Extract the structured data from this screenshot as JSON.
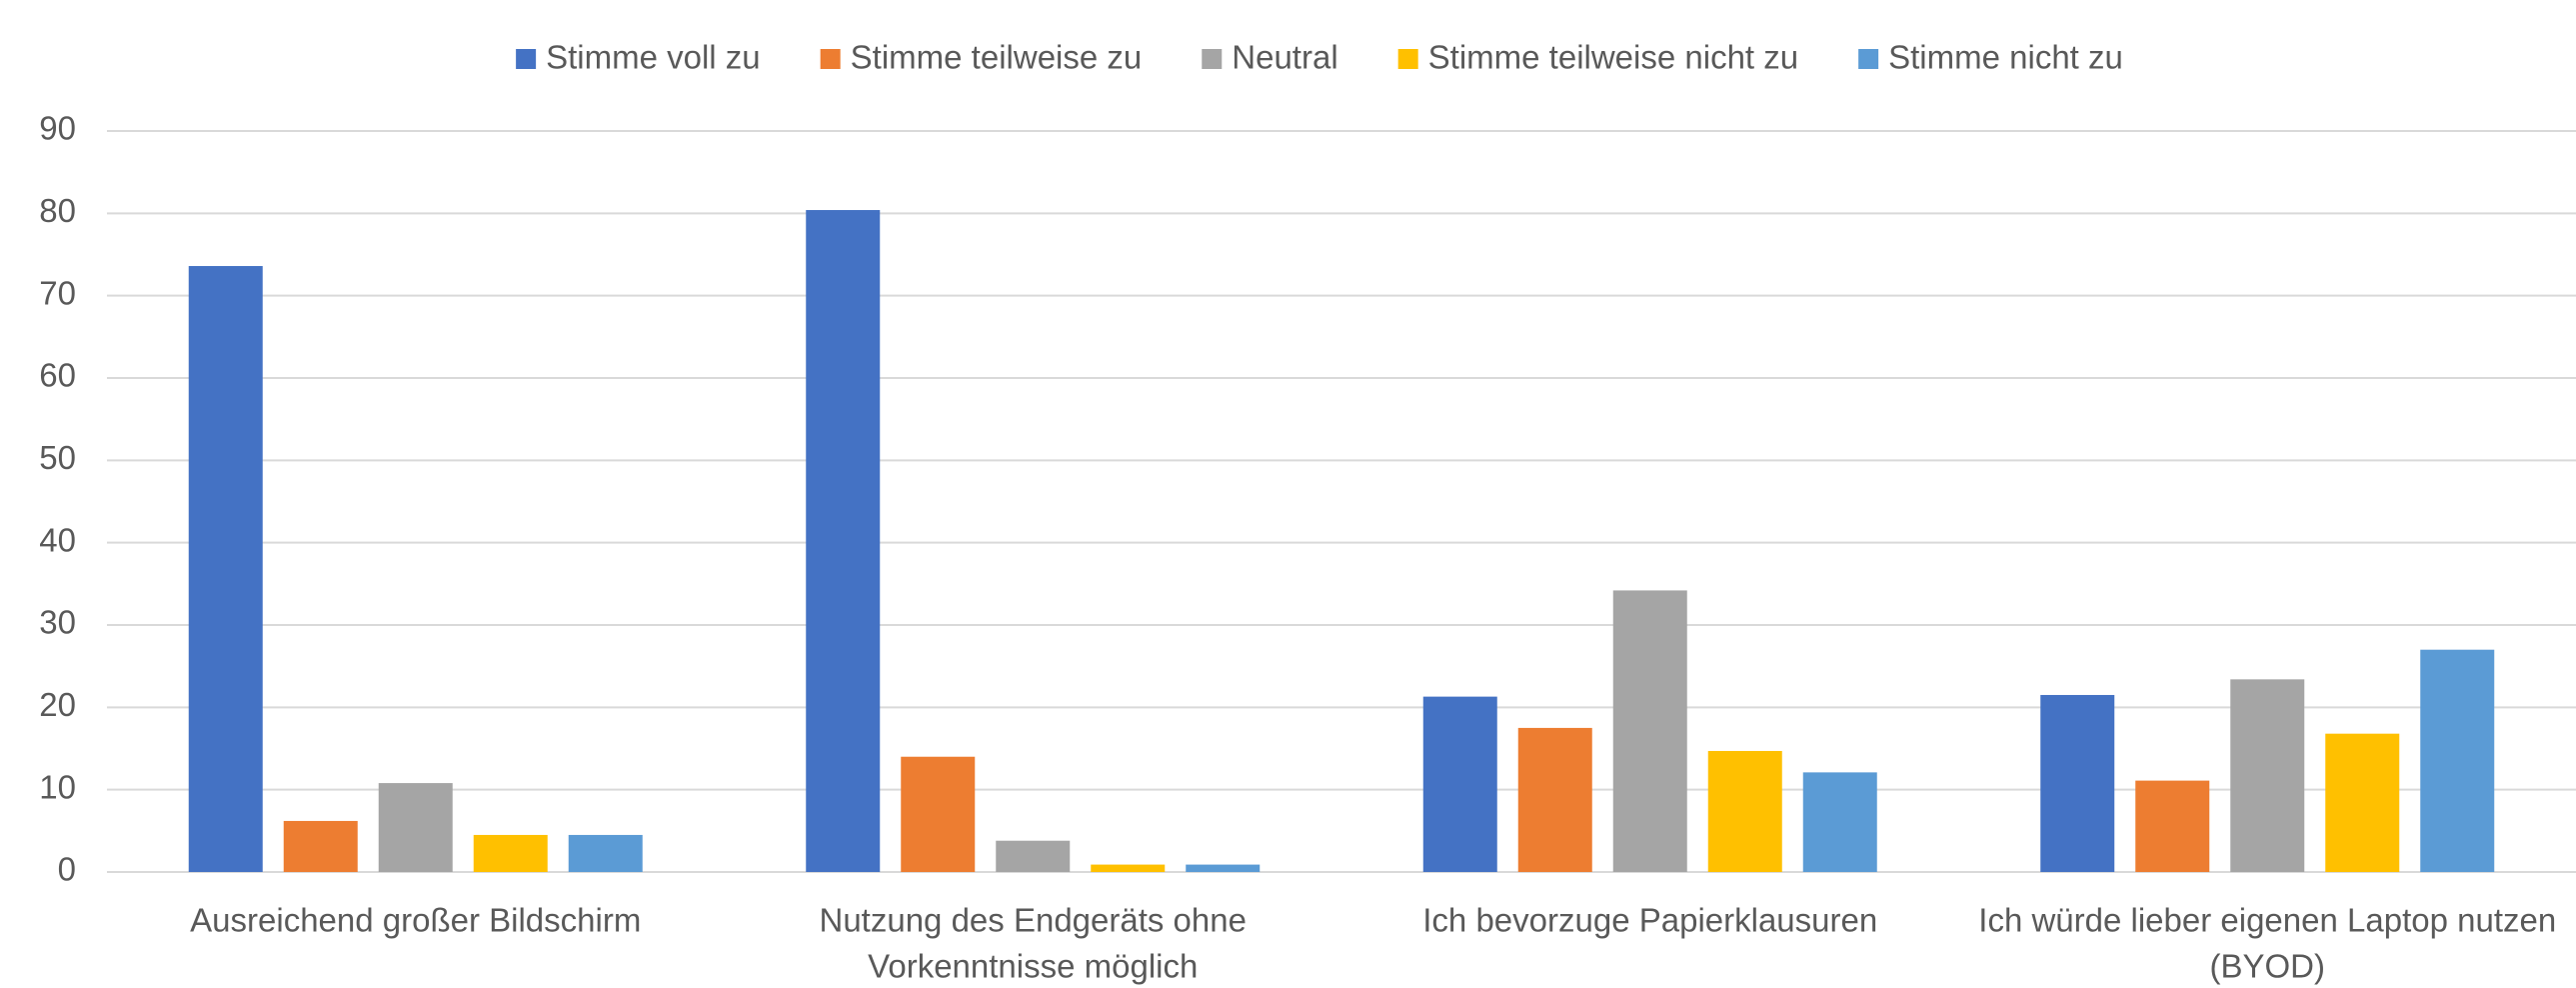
{
  "chart_data": {
    "type": "bar",
    "categories": [
      [
        "Ausreichend großer Bildschirm"
      ],
      [
        "Nutzung des Endgeräts ohne",
        "Vorkenntnisse möglich"
      ],
      [
        "Ich bevorzuge Papierklausuren"
      ],
      [
        "Ich würde lieber eigenen Laptop nutzen",
        "(BYOD)"
      ]
    ],
    "series": [
      {
        "name": "Stimme voll zu",
        "color": "#4472c4",
        "values": [
          73.6,
          80.4,
          21.3,
          21.5
        ]
      },
      {
        "name": "Stimme teilweise zu",
        "color": "#ed7d31",
        "values": [
          6.2,
          14,
          17.5,
          11.1
        ]
      },
      {
        "name": "Neutral",
        "color": "#a5a5a5",
        "values": [
          10.8,
          3.8,
          34.2,
          23.4
        ]
      },
      {
        "name": "Stimme teilweise nicht zu",
        "color": "#ffc000",
        "values": [
          4.5,
          0.9,
          14.7,
          16.8
        ]
      },
      {
        "name": "Stimme nicht zu",
        "color": "#5b9bd5",
        "values": [
          4.5,
          0.9,
          12.1,
          27
        ]
      }
    ],
    "ylim": [
      0,
      90
    ],
    "yticks": [
      0,
      10,
      20,
      30,
      40,
      50,
      60,
      70,
      80,
      90
    ],
    "grid": true,
    "legend": "top"
  }
}
